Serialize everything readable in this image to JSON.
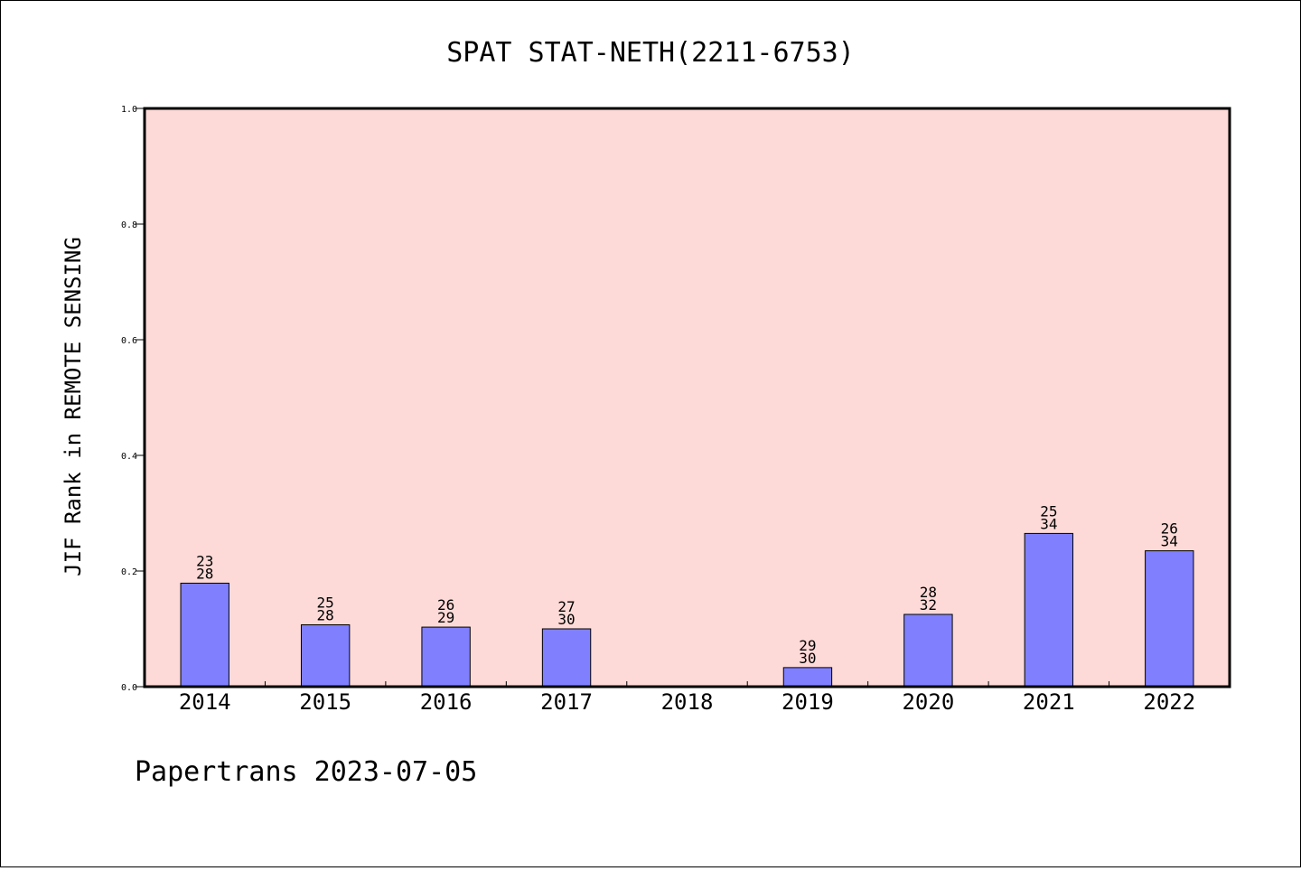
{
  "chart_data": {
    "type": "bar",
    "title": "SPAT STAT-NETH(2211-6753)",
    "ylabel": "JIF Rank in REMOTE SENSING",
    "xlabel": "",
    "ylim": [
      0,
      1.0
    ],
    "yticks": [
      "0.0",
      "0.2",
      "0.4",
      "0.6",
      "0.8",
      "1.0"
    ],
    "categories": [
      "2014",
      "2015",
      "2016",
      "2017",
      "2018",
      "2019",
      "2020",
      "2021",
      "2022"
    ],
    "values": [
      0.179,
      0.107,
      0.103,
      0.1,
      null,
      0.033,
      0.125,
      0.265,
      0.235
    ],
    "rank": [
      "23",
      "25",
      "26",
      "27",
      "",
      "29",
      "28",
      "25",
      "26"
    ],
    "total": [
      "28",
      "28",
      "29",
      "30",
      "",
      "30",
      "32",
      "34",
      "34"
    ],
    "grid": false,
    "colors": {
      "plot_background": "#fddad7",
      "bar": "#8080ff",
      "bar_edge": "#000000"
    }
  },
  "footer": {
    "text": "Papertrans 2023-07-05"
  }
}
